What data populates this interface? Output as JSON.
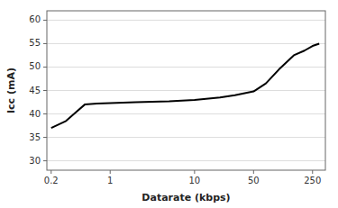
{
  "chart_data": {
    "type": "line",
    "x": [
      0.2,
      0.3,
      0.4,
      0.5,
      0.7,
      1.0,
      2.0,
      5.0,
      10.0,
      20.0,
      30.0,
      50.0,
      70.0,
      100.0,
      150.0,
      200.0,
      250.0,
      300.0
    ],
    "values": [
      37.0,
      38.5,
      40.5,
      42.0,
      42.2,
      42.3,
      42.5,
      42.7,
      43.0,
      43.5,
      44.0,
      44.8,
      46.5,
      49.5,
      52.5,
      53.5,
      54.5,
      55.0
    ],
    "color": "#000000",
    "log": "x",
    "xlim": [
      0.1778279410038923,
      354.8133892335753
    ],
    "xticks": [
      0.2,
      1,
      10,
      50,
      250
    ],
    "ylim": [
      28,
      62
    ],
    "yticks": [
      30,
      35,
      40,
      45,
      50,
      55,
      60
    ],
    "xlabel": "Datarate (kbps)",
    "ylabel": "Icc (mA)",
    "grid": true
  }
}
